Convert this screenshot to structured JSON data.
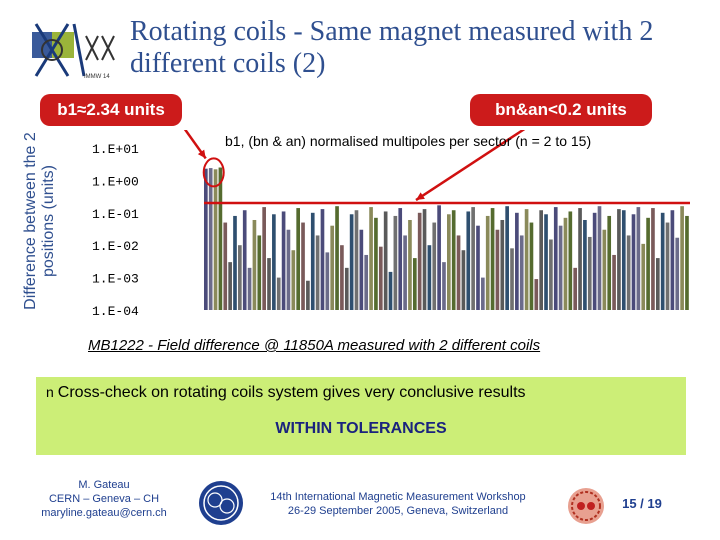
{
  "title": "Rotating coils - Same magnet measured with 2 different coils (2)",
  "logo": {
    "text": "IMMW 14"
  },
  "callouts": {
    "b1": "b1≈2.34 units",
    "bn": "bn&an<0.2 units"
  },
  "chart_data": {
    "type": "bar",
    "title": "b1, (bn & an) normalised multipoles per sector (n = 2 to 15)",
    "ylabel": "Difference between the 2 positions (units)",
    "yscale": "log",
    "ylim": [
      0.0001,
      10
    ],
    "yticks": [
      "1.E+01",
      "1.E+00",
      "1.E-01",
      "1.E-02",
      "1.E-03",
      "1.E-04"
    ],
    "reference_line": 0.2,
    "reference_line_color": "#d01010",
    "highlight": [
      {
        "label": "b1",
        "value": 2.34
      }
    ],
    "values": [
      2.3,
      2.4,
      2.2,
      2.5,
      0.05,
      0.003,
      0.08,
      0.01,
      0.12,
      0.002,
      0.06,
      0.02,
      0.15,
      0.004,
      0.09,
      0.001,
      0.11,
      0.03,
      0.007,
      0.14,
      0.05,
      0.0008,
      0.1,
      0.02,
      0.13,
      0.006,
      0.04,
      0.16,
      0.01,
      0.002,
      0.09,
      0.12,
      0.03,
      0.005,
      0.15,
      0.07,
      0.009,
      0.11,
      0.0015,
      0.08,
      0.14,
      0.02,
      0.06,
      0.004,
      0.1,
      0.13,
      0.01,
      0.05,
      0.17,
      0.003,
      0.09,
      0.12,
      0.02,
      0.007,
      0.11,
      0.15,
      0.04,
      0.001,
      0.08,
      0.14,
      0.03,
      0.06,
      0.16,
      0.008,
      0.1,
      0.02,
      0.13,
      0.05,
      0.0009,
      0.12,
      0.09,
      0.015,
      0.15,
      0.04,
      0.07,
      0.11,
      0.002,
      0.14,
      0.06,
      0.018,
      0.1,
      0.16,
      0.03,
      0.08,
      0.005,
      0.13,
      0.12,
      0.02,
      0.09,
      0.15,
      0.011,
      0.07,
      0.14,
      0.004,
      0.1,
      0.05,
      0.12,
      0.017,
      0.16,
      0.08
    ],
    "bar_colors": [
      "#4b4b7a",
      "#6b6b8a",
      "#8a8a5a",
      "#556b2f",
      "#7a5a5a",
      "#5a5a5a",
      "#2f4f6f",
      "#707070"
    ]
  },
  "caption": "MB1222 - Field difference @ 11850A measured with 2 different coils",
  "bullet": {
    "mark": "n",
    "text": "Cross-check on rotating coils system gives very conclusive results"
  },
  "conclusion": "WITHIN TOLERANCES",
  "footer": {
    "author": [
      "M. Gateau",
      "CERN – Geneva – CH",
      "maryline.gateau@cern.ch"
    ],
    "workshop": [
      "14th International Magnetic Measurement Workshop",
      "26-29 September 2005, Geneva, Switzerland"
    ],
    "page": "15 / 19"
  },
  "colors": {
    "title": "#2f4f8f",
    "callout": "#cc1b1b",
    "highlight_box": "#ccee77",
    "conclusion": "#1a237e"
  }
}
